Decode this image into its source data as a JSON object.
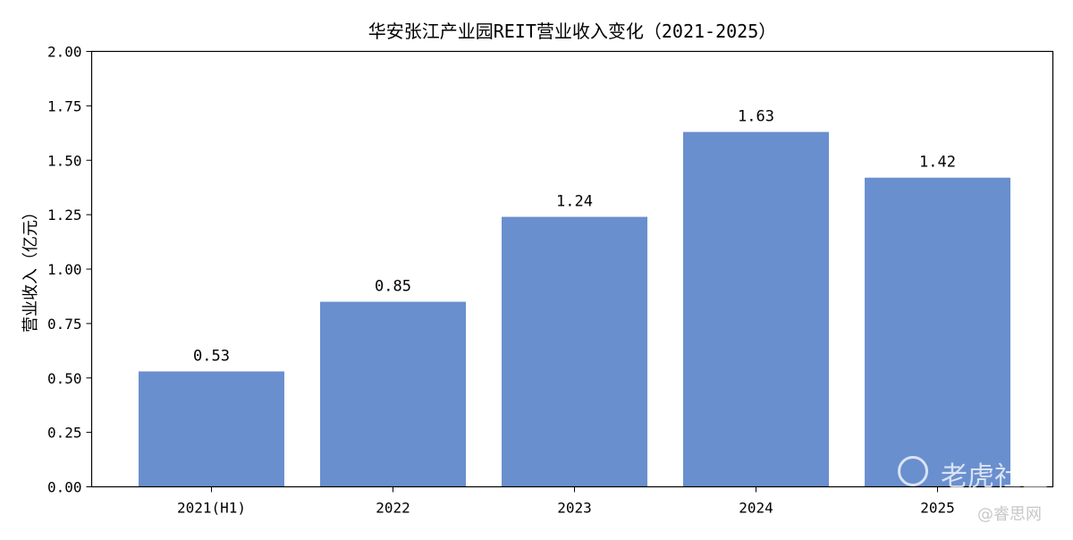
{
  "chart_data": {
    "type": "bar",
    "title": "华安张江产业园REIT营业收入变化（2021-2025）",
    "xlabel": "",
    "ylabel": "营业收入（亿元）",
    "categories": [
      "2021(H1)",
      "2022",
      "2023",
      "2024",
      "2025"
    ],
    "values": [
      0.53,
      0.85,
      1.24,
      1.63,
      1.42
    ],
    "data_labels": [
      "0.53",
      "0.85",
      "1.24",
      "1.63",
      "1.42"
    ],
    "ylim": [
      0,
      2.0
    ],
    "yticks": [
      "0.00",
      "0.25",
      "0.50",
      "0.75",
      "1.00",
      "1.25",
      "1.50",
      "1.75",
      "2.00"
    ],
    "grid": false,
    "bar_color": "#6a8fce"
  },
  "watermarks": {
    "main": "老虎社区",
    "sub": "@睿思网"
  }
}
